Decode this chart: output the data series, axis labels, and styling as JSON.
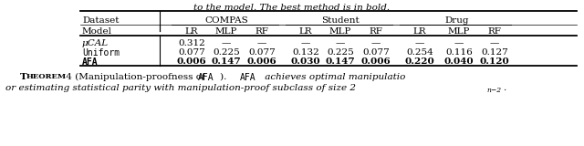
{
  "caption_top": "to the model. The best method is in bold.",
  "dataset_groups": [
    {
      "label": "COMPAS",
      "cols": [
        "LR",
        "MLP",
        "RF"
      ]
    },
    {
      "label": "Student",
      "cols": [
        "LR",
        "MLP",
        "RF"
      ]
    },
    {
      "label": "Drug",
      "cols": [
        "LR",
        "MLP",
        "RF"
      ]
    }
  ],
  "row_labels": [
    "μCAL",
    "Uniform",
    "AFA"
  ],
  "data": [
    [
      "0.312",
      "—",
      "—",
      "—",
      "—",
      "—",
      "—",
      "—",
      "—"
    ],
    [
      "0.077",
      "0.225",
      "0.077",
      "0.132",
      "0.225",
      "0.077",
      "0.254",
      "0.116",
      "0.127"
    ],
    [
      "0.006",
      "0.147",
      "0.006",
      "0.030",
      "0.147",
      "0.006",
      "0.220",
      "0.040",
      "0.120"
    ]
  ],
  "bold_row_idx": [
    2
  ],
  "theorem_normal1": "T",
  "theorem_sc": "HEOREM",
  "theorem_normal2": " 4 (Manipulation-proofness of ",
  "theorem_tt": "AFA",
  "theorem_normal3": ").   ",
  "theorem_tt2": "AFA",
  "theorem_italic1": " achieves optimal manipulatio",
  "theorem_line2_italic": "or estimating statistical parity with manipulation-proof subclass of size 2",
  "theorem_sup": "n−2",
  "theorem_period": ".",
  "bg": "#ffffff"
}
